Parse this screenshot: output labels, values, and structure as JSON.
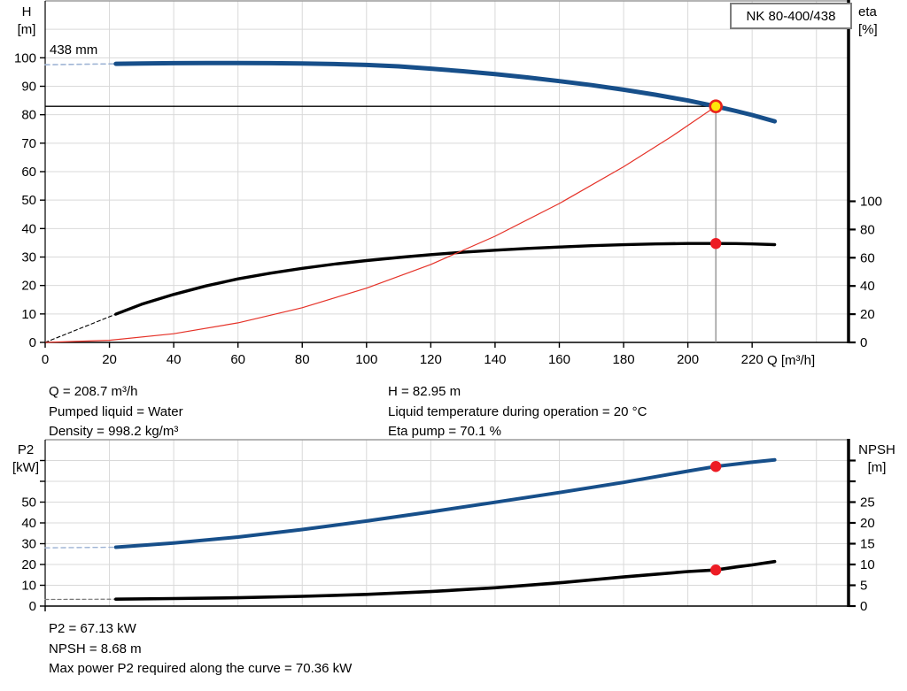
{
  "title_box": {
    "label": "NK 80-400/438"
  },
  "colors": {
    "curve_blue": "#174f8a",
    "curve_black": "#000000",
    "system_red": "#e53228",
    "marker_red": "#ed1c24",
    "marker_yellow_fill": "#ffe60a",
    "marker_yellow_ring": "#e8251d",
    "dash_blue": "#9db3d4",
    "dash_gray": "#777777",
    "grid": "#d9d9d9",
    "border_gray": "#9b9b9b",
    "op_line_gray": "#8c8c8c",
    "axis_black": "#000000"
  },
  "chart_data": [
    {
      "id": "top",
      "type": "line",
      "title": "NK 80-400/438 pump performance curve",
      "annotation": "438 mm",
      "x_axis": {
        "label": "Q [m³/h]",
        "max": 250,
        "ticks": [
          0,
          20,
          40,
          60,
          80,
          100,
          120,
          140,
          160,
          180,
          200,
          220
        ],
        "grid": [
          20,
          40,
          60,
          80,
          100,
          120,
          140,
          160,
          180,
          200,
          220,
          240
        ]
      },
      "left_axis": {
        "title": [
          "H",
          "[m]"
        ],
        "max": 120,
        "tick_values": [
          0,
          10,
          20,
          30,
          40,
          50,
          60,
          70,
          80,
          90,
          100
        ],
        "tick_labels": [
          "0",
          "10",
          "20",
          "30",
          "40",
          "50",
          "60",
          "70",
          "80",
          "90",
          "100"
        ],
        "grid": [
          10,
          20,
          30,
          40,
          50,
          60,
          70,
          80,
          90,
          100,
          110
        ]
      },
      "right_axis": {
        "title": [
          "eta",
          "[%]"
        ],
        "max": 242,
        "tick_values": [
          0,
          20,
          40,
          60,
          80,
          100
        ],
        "tick_labels": [
          "0",
          "20",
          "40",
          "60",
          "80",
          "100"
        ]
      },
      "series": [
        {
          "name": "head-curve-extension",
          "axis": "left",
          "color": "#9db3d4",
          "width": 1.6,
          "dash": "5,4",
          "points": [
            [
              0,
              97.55
            ],
            [
              10,
              97.7
            ],
            [
              22,
              97.9
            ]
          ]
        },
        {
          "name": "head-curve",
          "axis": "left",
          "color": "#174f8a",
          "width": 5,
          "dash": null,
          "points": [
            [
              22,
              97.9
            ],
            [
              30,
              98.0
            ],
            [
              40,
              98.1
            ],
            [
              50,
              98.15
            ],
            [
              60,
              98.15
            ],
            [
              70,
              98.1
            ],
            [
              80,
              98.0
            ],
            [
              90,
              97.8
            ],
            [
              100,
              97.5
            ],
            [
              110,
              97.0
            ],
            [
              120,
              96.2
            ],
            [
              130,
              95.3
            ],
            [
              140,
              94.3
            ],
            [
              150,
              93.1
            ],
            [
              160,
              91.8
            ],
            [
              170,
              90.4
            ],
            [
              180,
              88.8
            ],
            [
              190,
              87.0
            ],
            [
              200,
              85.0
            ],
            [
              208.7,
              82.95
            ],
            [
              215,
              81.3
            ],
            [
              220,
              79.9
            ],
            [
              227,
              77.7
            ]
          ]
        },
        {
          "name": "eta-curve-extension",
          "axis": "right",
          "color": "#000000",
          "width": 1.1,
          "dash": "4,3",
          "points": [
            [
              0,
              0
            ],
            [
              22,
              20
            ]
          ]
        },
        {
          "name": "eta-curve",
          "axis": "right",
          "color": "#000000",
          "width": 3.4,
          "dash": null,
          "points": [
            [
              22,
              20
            ],
            [
              30,
              27
            ],
            [
              40,
              34
            ],
            [
              50,
              40
            ],
            [
              60,
              45
            ],
            [
              70,
              49
            ],
            [
              80,
              52.5
            ],
            [
              90,
              55.5
            ],
            [
              100,
              58
            ],
            [
              110,
              60.2
            ],
            [
              120,
              62.2
            ],
            [
              130,
              63.9
            ],
            [
              140,
              65.3
            ],
            [
              150,
              66.6
            ],
            [
              160,
              67.6
            ],
            [
              170,
              68.5
            ],
            [
              180,
              69.2
            ],
            [
              190,
              69.8
            ],
            [
              200,
              70.1
            ],
            [
              208.7,
              70.1
            ],
            [
              215,
              70.0
            ],
            [
              220,
              69.8
            ],
            [
              227,
              69.3
            ]
          ]
        },
        {
          "name": "system-curve",
          "axis": "left",
          "color": "#e53228",
          "width": 1.2,
          "dash": null,
          "points": [
            [
              0,
              0
            ],
            [
              20,
              0.76
            ],
            [
              40,
              3.05
            ],
            [
              60,
              6.86
            ],
            [
              80,
              12.2
            ],
            [
              100,
              19.05
            ],
            [
              120,
              27.4
            ],
            [
              140,
              37.3
            ],
            [
              160,
              48.8
            ],
            [
              180,
              61.7
            ],
            [
              195,
              72.4
            ],
            [
              208.7,
              82.95
            ]
          ]
        }
      ],
      "ref_lines": [
        {
          "type": "h",
          "axis": "left",
          "v": 82.95,
          "q1": 0,
          "q2": 208.7,
          "color": "#000000",
          "width": 1.3
        },
        {
          "type": "v",
          "axis": "left",
          "q": 208.7,
          "v1": 0,
          "v2": 82.95,
          "color": "#8c8c8c",
          "width": 1.3
        }
      ],
      "markers": [
        {
          "name": "duty-point",
          "axis": "left",
          "q": 208.7,
          "v": 82.95,
          "style": "duty"
        },
        {
          "name": "eta-point",
          "axis": "right",
          "q": 208.7,
          "v": 70.1,
          "style": "dot"
        }
      ]
    },
    {
      "id": "bottom",
      "type": "line",
      "title": "P2 and NPSH curves",
      "x_axis": {
        "label": "",
        "max": 250,
        "ticks": [
          0
        ],
        "grid": [
          20,
          40,
          60,
          80,
          100,
          120,
          140,
          160,
          180,
          200,
          220,
          240
        ]
      },
      "left_axis": {
        "title": [
          "P2",
          "[kW]"
        ],
        "max": 80,
        "tick_values": [
          0,
          10,
          20,
          30,
          40,
          50,
          60,
          70
        ],
        "tick_labels": [
          "0",
          "10",
          "20",
          "30",
          "40",
          "50",
          "",
          ""
        ],
        "grid": [
          10,
          20,
          30,
          40,
          50,
          60,
          70
        ]
      },
      "right_axis": {
        "title": [
          "NPSH",
          "[m]"
        ],
        "max": 40,
        "tick_values": [
          0,
          5,
          10,
          15,
          20,
          25,
          30,
          35
        ],
        "tick_labels": [
          "0",
          "5",
          "10",
          "15",
          "20",
          "25",
          "",
          ""
        ]
      },
      "series": [
        {
          "name": "p2-curve-extension",
          "axis": "left",
          "color": "#9db3d4",
          "width": 1.4,
          "dash": "5,4",
          "points": [
            [
              0,
              28
            ],
            [
              22,
              28.3
            ]
          ]
        },
        {
          "name": "p2-curve",
          "axis": "left",
          "color": "#174f8a",
          "width": 4,
          "dash": null,
          "points": [
            [
              22,
              28.3
            ],
            [
              40,
              30.3
            ],
            [
              60,
              33.2
            ],
            [
              80,
              36.8
            ],
            [
              100,
              40.9
            ],
            [
              120,
              45.3
            ],
            [
              140,
              49.9
            ],
            [
              160,
              54.6
            ],
            [
              180,
              59.5
            ],
            [
              200,
              64.9
            ],
            [
              208.7,
              67.13
            ],
            [
              220,
              69.2
            ],
            [
              227,
              70.36
            ]
          ]
        },
        {
          "name": "npsh-curve-extension",
          "axis": "right",
          "color": "#777777",
          "width": 1.2,
          "dash": "4,3",
          "points": [
            [
              0,
              1.6
            ],
            [
              22,
              1.65
            ]
          ]
        },
        {
          "name": "npsh-curve",
          "axis": "right",
          "color": "#000000",
          "width": 3.6,
          "dash": null,
          "points": [
            [
              22,
              1.65
            ],
            [
              40,
              1.8
            ],
            [
              60,
              2.0
            ],
            [
              80,
              2.35
            ],
            [
              100,
              2.8
            ],
            [
              120,
              3.5
            ],
            [
              140,
              4.4
            ],
            [
              160,
              5.6
            ],
            [
              180,
              7.0
            ],
            [
              200,
              8.3
            ],
            [
              208.7,
              8.68
            ],
            [
              215,
              9.4
            ],
            [
              220,
              9.9
            ],
            [
              227,
              10.7
            ]
          ]
        }
      ],
      "ref_lines": [],
      "markers": [
        {
          "name": "p2-point",
          "axis": "left",
          "q": 208.7,
          "v": 67.13,
          "style": "dot"
        },
        {
          "name": "npsh-point",
          "axis": "right",
          "q": 208.7,
          "v": 8.68,
          "style": "dot"
        }
      ]
    }
  ],
  "info_top": {
    "left": [
      "Q = 208.7 m³/h",
      "Pumped liquid = Water",
      "Density = 998.2 kg/m³"
    ],
    "right": [
      "H = 82.95 m",
      "Liquid temperature during operation = 20 °C",
      "Eta pump = 70.1 %"
    ]
  },
  "info_bottom": [
    "P2 = 67.13 kW",
    "NPSH = 8.68 m",
    "Max power P2 required along the curve = 70.36 kW"
  ]
}
